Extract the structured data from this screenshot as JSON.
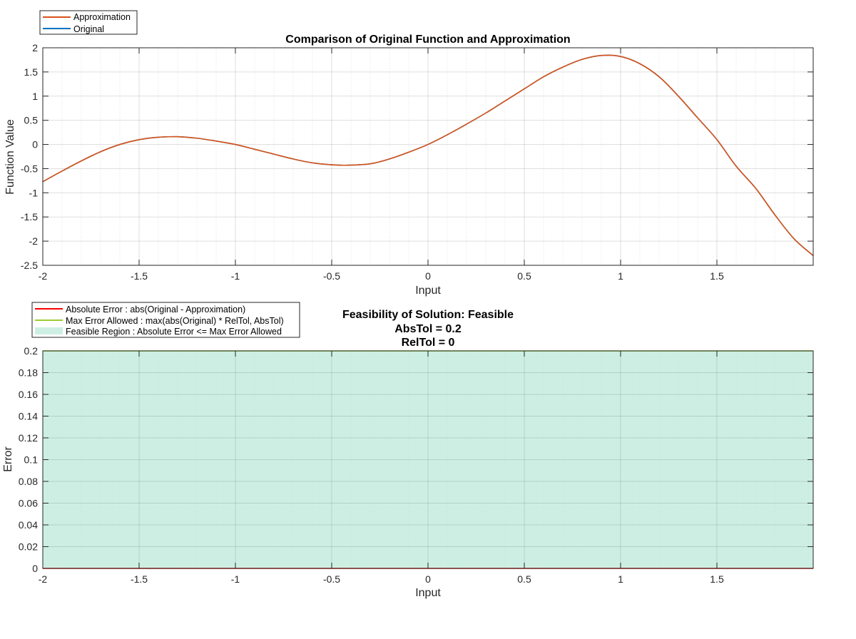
{
  "chart_data": [
    {
      "type": "line",
      "title": "Comparison of Original Function and Approximation",
      "xlabel": "Input",
      "ylabel": "Function Value",
      "xlim": [
        -2,
        2
      ],
      "ylim": [
        -2.5,
        2
      ],
      "xticks": [
        -2,
        -1.5,
        -1,
        -0.5,
        0,
        0.5,
        1,
        1.5
      ],
      "yticks": [
        -2.5,
        -2,
        -1.5,
        -1,
        -0.5,
        0,
        0.5,
        1,
        1.5,
        2
      ],
      "xtick_labels": [
        "-2",
        "-1.5",
        "-1",
        "-0.5",
        "0",
        "0.5",
        "1",
        "1.5"
      ],
      "ytick_labels": [
        "-2.5",
        "-2",
        "-1.5",
        "-1",
        "-0.5",
        "0",
        "0.5",
        "1",
        "1.5",
        "2"
      ],
      "grid": true,
      "minor_grid": true,
      "legend_position": "top-left (outside)",
      "series": [
        {
          "name": "Approximation",
          "color": "#D95319",
          "x": [
            -2,
            -1.9,
            -1.8,
            -1.7,
            -1.6,
            -1.5,
            -1.4,
            -1.3,
            -1.2,
            -1.1,
            -1.0,
            -0.9,
            -0.8,
            -0.7,
            -0.6,
            -0.5,
            -0.42,
            -0.3,
            -0.2,
            -0.1,
            0,
            0.1,
            0.2,
            0.3,
            0.4,
            0.5,
            0.6,
            0.7,
            0.8,
            0.9,
            1.0,
            1.1,
            1.2,
            1.3,
            1.4,
            1.5,
            1.6,
            1.7,
            1.8,
            1.9,
            2.0
          ],
          "y": [
            -0.77,
            -0.55,
            -0.34,
            -0.15,
            0.0,
            0.1,
            0.15,
            0.16,
            0.13,
            0.07,
            0.0,
            -0.1,
            -0.2,
            -0.3,
            -0.38,
            -0.42,
            -0.43,
            -0.4,
            -0.3,
            -0.16,
            0.0,
            0.2,
            0.42,
            0.65,
            0.9,
            1.15,
            1.4,
            1.6,
            1.76,
            1.84,
            1.82,
            1.67,
            1.4,
            1.0,
            0.55,
            0.1,
            -0.45,
            -0.9,
            -1.45,
            -1.95,
            -2.3
          ]
        },
        {
          "name": "Original",
          "color": "#0072BD",
          "x": [
            -2,
            -1.9,
            -1.8,
            -1.7,
            -1.6,
            -1.5,
            -1.4,
            -1.3,
            -1.2,
            -1.1,
            -1.0,
            -0.9,
            -0.8,
            -0.7,
            -0.6,
            -0.5,
            -0.42,
            -0.3,
            -0.2,
            -0.1,
            0,
            0.1,
            0.2,
            0.3,
            0.4,
            0.5,
            0.6,
            0.7,
            0.8,
            0.9,
            1.0,
            1.1,
            1.2,
            1.3,
            1.4,
            1.5,
            1.6,
            1.7,
            1.8,
            1.9,
            2.0
          ],
          "y": [
            -0.77,
            -0.55,
            -0.34,
            -0.15,
            0.0,
            0.1,
            0.15,
            0.16,
            0.13,
            0.07,
            0.0,
            -0.1,
            -0.2,
            -0.3,
            -0.38,
            -0.42,
            -0.43,
            -0.4,
            -0.3,
            -0.16,
            0.0,
            0.2,
            0.42,
            0.65,
            0.9,
            1.15,
            1.4,
            1.6,
            1.76,
            1.84,
            1.82,
            1.67,
            1.4,
            1.0,
            0.55,
            0.1,
            -0.45,
            -0.9,
            -1.45,
            -1.95,
            -2.3
          ]
        }
      ]
    },
    {
      "type": "area",
      "title": [
        "Feasibility of Solution: Feasible",
        "AbsTol = 0.2",
        "RelTol = 0"
      ],
      "xlabel": "Input",
      "ylabel": "Error",
      "xlim": [
        -2,
        2
      ],
      "ylim": [
        0,
        0.2
      ],
      "xticks": [
        -2,
        -1.5,
        -1,
        -0.5,
        0,
        0.5,
        1,
        1.5
      ],
      "yticks": [
        0,
        0.02,
        0.04,
        0.06,
        0.08,
        0.1,
        0.12,
        0.14,
        0.16,
        0.18,
        0.2
      ],
      "xtick_labels": [
        "-2",
        "-1.5",
        "-1",
        "-0.5",
        "0",
        "0.5",
        "1",
        "1.5"
      ],
      "ytick_labels": [
        "0",
        "0.02",
        "0.04",
        "0.06",
        "0.08",
        "0.1",
        "0.12",
        "0.14",
        "0.16",
        "0.18",
        "0.2"
      ],
      "grid": true,
      "minor_grid": true,
      "legend_position": "top-left (outside)",
      "series": [
        {
          "name": "Absolute Error : abs(Original - Approximation)",
          "color": "#FF0000",
          "x": [
            -2,
            2
          ],
          "y": [
            0,
            0
          ]
        },
        {
          "name": "Max Error Allowed : max(abs(Original) * RelTol, AbsTol)",
          "color": "#9ACD32",
          "x": [
            -2,
            2
          ],
          "y": [
            0.2,
            0.2
          ]
        },
        {
          "name": "Feasible Region : Absolute Error <= Max Error Allowed",
          "color": "#CDEFE3",
          "x": [
            -2,
            2
          ],
          "y_lower": [
            0,
            0
          ],
          "y_upper": [
            0.2,
            0.2
          ]
        }
      ]
    }
  ]
}
